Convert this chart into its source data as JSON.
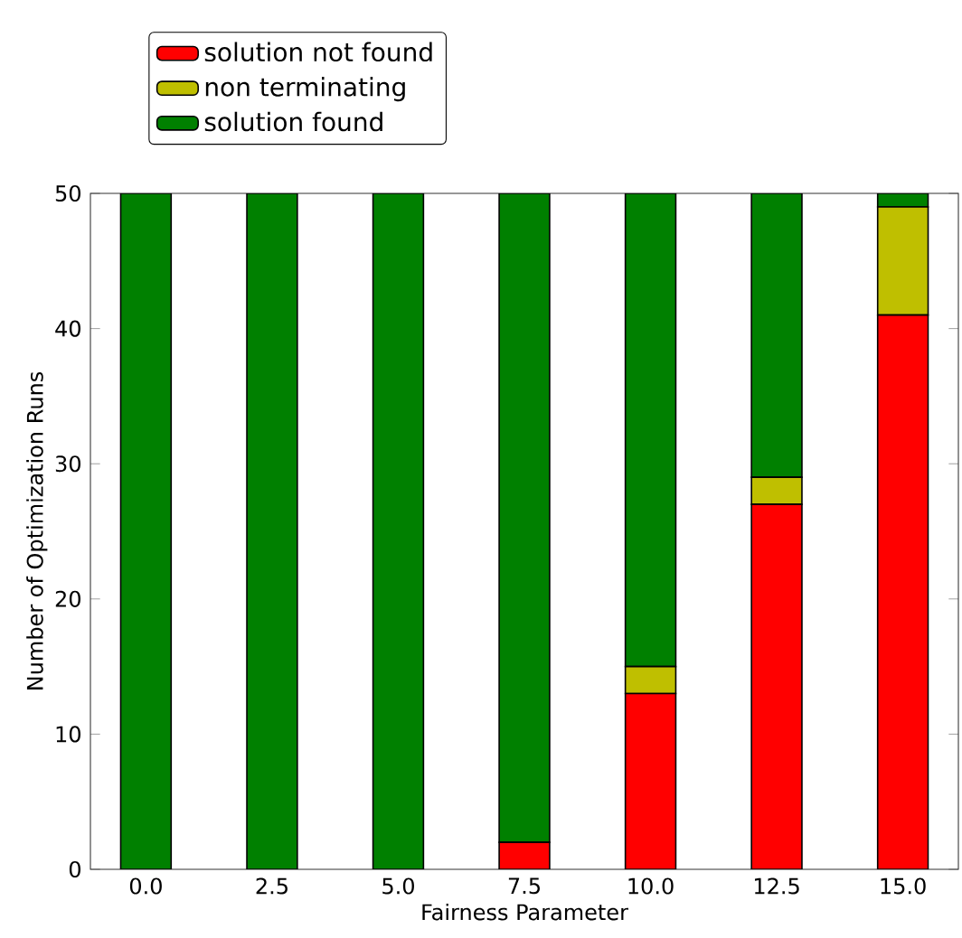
{
  "chart_data": {
    "type": "bar",
    "stacked": true,
    "xlabel": "Fairness Parameter",
    "ylabel": "Number of Optimization Runs",
    "x": [
      0,
      2.5,
      5,
      7.5,
      10,
      12.5,
      15
    ],
    "series": [
      {
        "name": "solution not found",
        "color": "#ff0000",
        "values": [
          0,
          0,
          0,
          2,
          13,
          27,
          41
        ]
      },
      {
        "name": "non terminating",
        "color": "#bfbf00",
        "values": [
          0,
          0,
          0,
          0,
          2,
          2,
          8
        ]
      },
      {
        "name": "solution found",
        "color": "#008000",
        "values": [
          50,
          50,
          50,
          48,
          35,
          21,
          1
        ]
      }
    ],
    "xlim": [
      -1.1,
      16.1
    ],
    "ylim": [
      0,
      50
    ],
    "xticks": [
      {
        "value": 0,
        "label": "0.0"
      },
      {
        "value": 2.5,
        "label": "2.5"
      },
      {
        "value": 5,
        "label": "5.0"
      },
      {
        "value": 7.5,
        "label": "7.5"
      },
      {
        "value": 10,
        "label": "10.0"
      },
      {
        "value": 12.5,
        "label": "12.5"
      },
      {
        "value": 15,
        "label": "15.0"
      }
    ],
    "yticks": [
      0,
      10,
      20,
      30,
      40,
      50
    ],
    "grid": false,
    "legend": "top left"
  }
}
